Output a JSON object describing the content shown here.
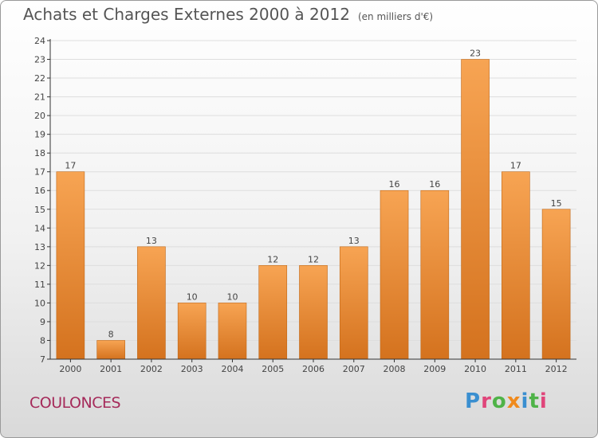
{
  "header": {
    "title": "Achats et Charges Externes 2000 à 2012",
    "unit": "(en milliers d'€)"
  },
  "footer": {
    "commune": "COULONCES",
    "logo": "Proxiti"
  },
  "colors": {
    "bar_top": "#f7a453",
    "bar_bottom": "#d4721e",
    "axis": "#333333",
    "grid": "#dddddd",
    "commune": "#a52a5a"
  },
  "chart_data": {
    "type": "bar",
    "title": "Achats et Charges Externes 2000 à 2012",
    "subtitle": "(en milliers d'€)",
    "xlabel": "",
    "ylabel": "",
    "categories": [
      "2000",
      "2001",
      "2002",
      "2003",
      "2004",
      "2005",
      "2006",
      "2007",
      "2008",
      "2009",
      "2010",
      "2011",
      "2012"
    ],
    "values": [
      17,
      8,
      13,
      10,
      10,
      12,
      12,
      13,
      16,
      16,
      23,
      17,
      15
    ],
    "ylim": [
      7,
      24
    ],
    "yticks": [
      7,
      8,
      9,
      10,
      11,
      12,
      13,
      14,
      15,
      16,
      17,
      18,
      19,
      20,
      21,
      22,
      23,
      24
    ],
    "grid": true,
    "data_labels": true
  }
}
